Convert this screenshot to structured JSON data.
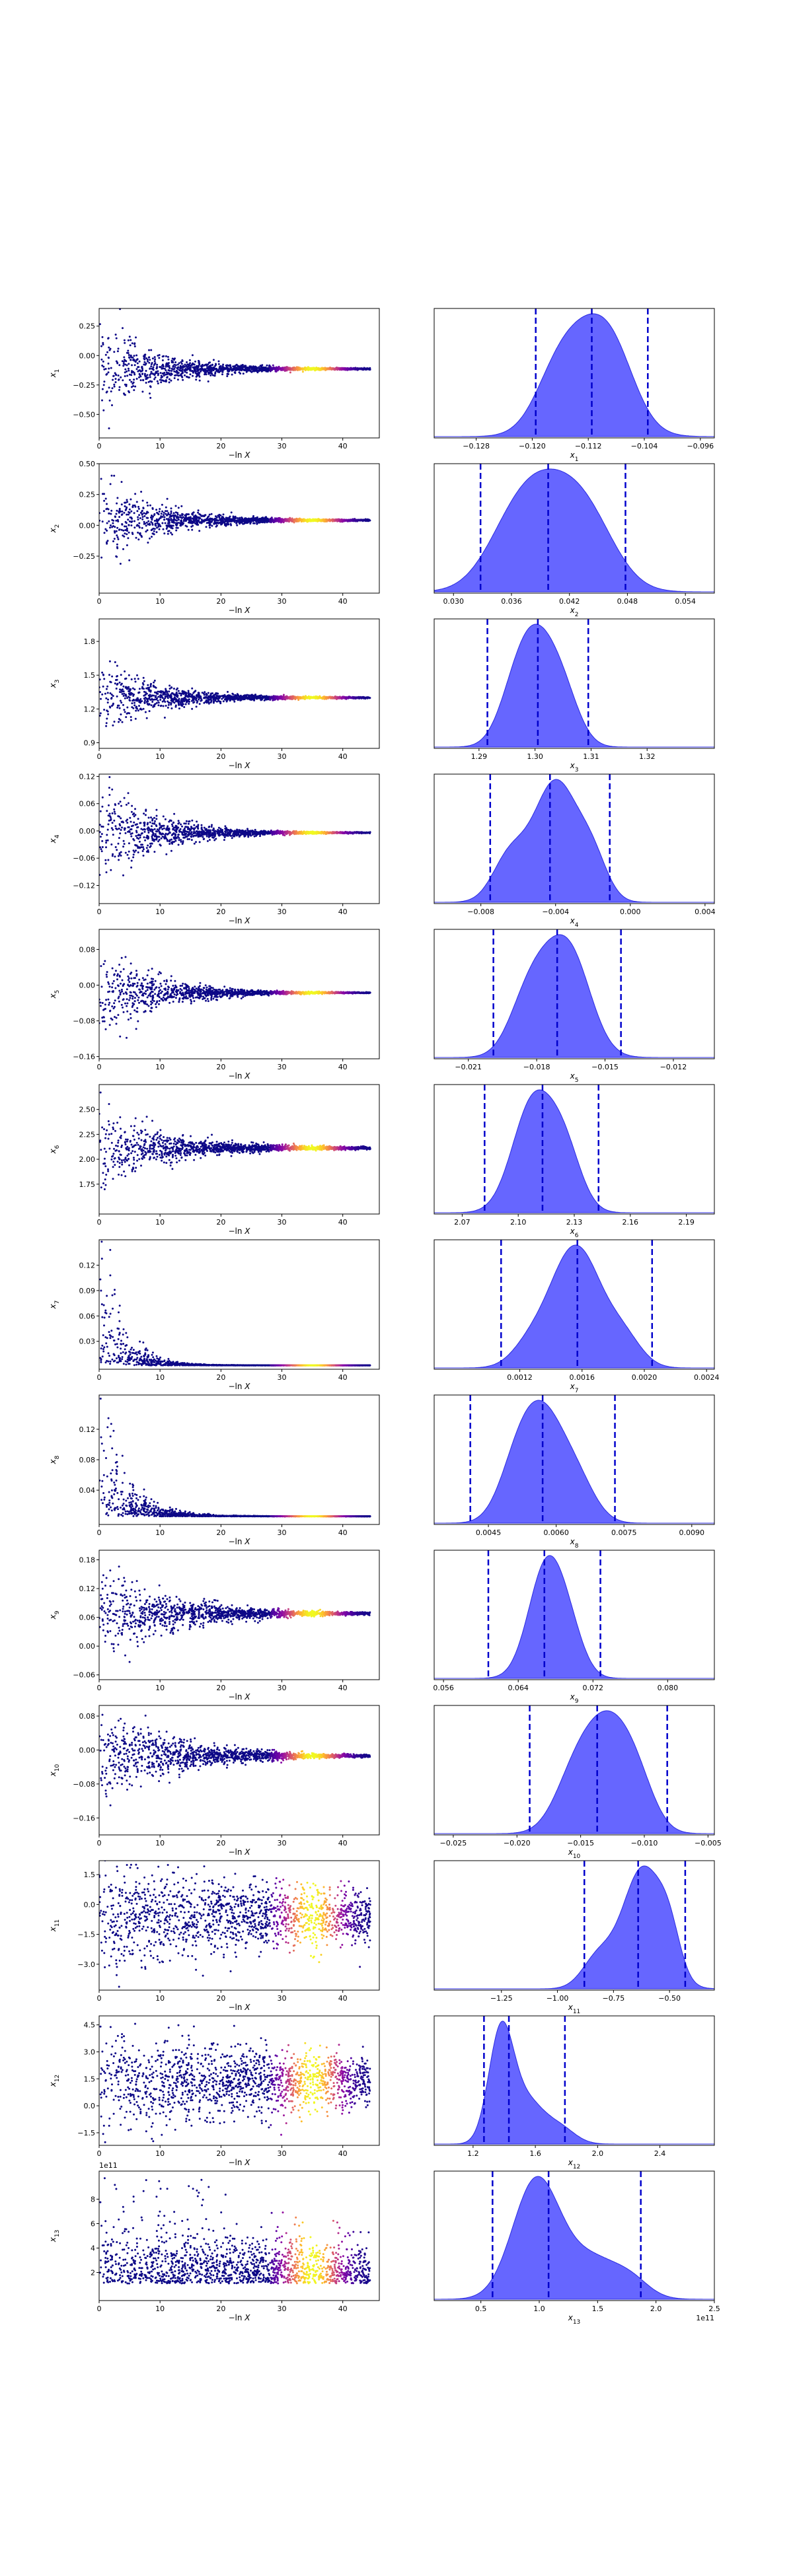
{
  "colors": {
    "scatter_low": "#0d0887",
    "scatter_high": "#f0f921",
    "kde_fill": "#6666ff",
    "kde_edge": "#2a2ae0",
    "quantile_line": "#0000cc",
    "axis": "#000000"
  },
  "chart_data": [
    {
      "type": "scatter",
      "param": "x1",
      "ylabel": "x1",
      "ysym": "x",
      "ysub": "1",
      "xlabel": "−ln X",
      "xlim": [
        0,
        46
      ],
      "ylim": [
        -0.7,
        0.4
      ],
      "xticks": [
        0,
        10,
        20,
        30,
        40
      ],
      "yticks": [
        0.25,
        0.0,
        -0.25,
        -0.5
      ],
      "yticklabels": [
        "0.25",
        "0.00",
        "−0.25",
        "−0.50"
      ],
      "center": -0.113,
      "spread0": 0.22,
      "decay": 0.12,
      "floor": 0.004
    },
    {
      "type": "area",
      "param": "x1",
      "xlabel": "x1",
      "xsym": "x",
      "xsub": "1",
      "xlim": [
        -0.134,
        -0.094
      ],
      "xticks": [
        -0.128,
        -0.12,
        -0.112,
        -0.104,
        -0.096
      ],
      "xticklabels": [
        "−0.128",
        "−0.120",
        "−0.112",
        "−0.104",
        "−0.096"
      ],
      "quantiles": [
        -0.1195,
        -0.1115,
        -0.1035
      ],
      "bumps": [
        [
          -0.112,
          0.0045,
          1.0
        ],
        [
          -0.117,
          0.003,
          0.25
        ],
        [
          -0.108,
          0.003,
          0.3
        ]
      ]
    },
    {
      "type": "scatter",
      "param": "x2",
      "ylabel": "x2",
      "ysym": "x",
      "ysub": "2",
      "xlabel": "−ln X",
      "xlim": [
        0,
        46
      ],
      "ylim": [
        -0.55,
        0.5
      ],
      "xticks": [
        0,
        10,
        20,
        30,
        40
      ],
      "yticks": [
        0.5,
        0.25,
        0.0,
        -0.25
      ],
      "yticklabels": [
        "0.50",
        "0.25",
        "0.00",
        "−0.25"
      ],
      "center": 0.041,
      "spread0": 0.2,
      "decay": 0.12,
      "floor": 0.004
    },
    {
      "type": "area",
      "param": "x2",
      "xlabel": "x2",
      "xsym": "x",
      "xsub": "2",
      "xlim": [
        0.028,
        0.057
      ],
      "xticks": [
        0.03,
        0.036,
        0.042,
        0.048,
        0.054
      ],
      "xticklabels": [
        "0.030",
        "0.036",
        "0.042",
        "0.048",
        "0.054"
      ],
      "quantiles": [
        0.0328,
        0.0398,
        0.0478
      ],
      "bumps": [
        [
          0.0395,
          0.0035,
          0.9
        ],
        [
          0.044,
          0.003,
          0.6
        ],
        [
          0.036,
          0.003,
          0.4
        ]
      ]
    },
    {
      "type": "scatter",
      "param": "x3",
      "ylabel": "x3",
      "ysym": "x",
      "ysub": "3",
      "xlabel": "−ln X",
      "xlim": [
        0,
        46
      ],
      "ylim": [
        0.85,
        2.0
      ],
      "xticks": [
        0,
        10,
        20,
        30,
        40
      ],
      "yticks": [
        1.8,
        1.5,
        1.2,
        0.9
      ],
      "yticklabels": [
        "1.8",
        "1.5",
        "1.2",
        "0.9"
      ],
      "center": 1.3,
      "spread0": 0.18,
      "decay": 0.12,
      "floor": 0.004
    },
    {
      "type": "area",
      "param": "x3",
      "xlabel": "x3",
      "xsym": "x",
      "xsub": "3",
      "xlim": [
        1.282,
        1.332
      ],
      "xticks": [
        1.29,
        1.3,
        1.31,
        1.32
      ],
      "xticklabels": [
        "1.29",
        "1.30",
        "1.31",
        "1.32"
      ],
      "quantiles": [
        1.2915,
        1.3005,
        1.3095
      ],
      "bumps": [
        [
          1.3,
          0.0035,
          1.0
        ],
        [
          1.305,
          0.003,
          0.45
        ],
        [
          1.296,
          0.003,
          0.3
        ]
      ]
    },
    {
      "type": "scatter",
      "param": "x4",
      "ylabel": "x4",
      "ysym": "x",
      "ysub": "4",
      "xlabel": "−ln X",
      "xlim": [
        0,
        46
      ],
      "ylim": [
        -0.16,
        0.125
      ],
      "xticks": [
        0,
        10,
        20,
        30,
        40
      ],
      "yticks": [
        0.12,
        0.06,
        0.0,
        -0.06,
        -0.12
      ],
      "yticklabels": [
        "0.12",
        "0.06",
        "0.00",
        "−0.06",
        "−0.12"
      ],
      "center": -0.004,
      "spread0": 0.06,
      "decay": 0.12,
      "floor": 0.002
    },
    {
      "type": "area",
      "param": "x4",
      "xlabel": "x4",
      "xsym": "x",
      "xsub": "4",
      "xlim": [
        -0.0105,
        0.0045
      ],
      "xticks": [
        -0.008,
        -0.004,
        0.0,
        0.004
      ],
      "xticklabels": [
        "−0.008",
        "−0.004",
        "0.000",
        "0.004"
      ],
      "quantiles": [
        -0.0075,
        -0.0043,
        -0.0011
      ],
      "bumps": [
        [
          -0.004,
          0.0012,
          1.0
        ],
        [
          -0.0065,
          0.0009,
          0.35
        ],
        [
          -0.002,
          0.0008,
          0.3
        ]
      ]
    },
    {
      "type": "scatter",
      "param": "x5",
      "ylabel": "x5",
      "ysym": "x",
      "ysub": "5",
      "xlabel": "−ln X",
      "xlim": [
        0,
        46
      ],
      "ylim": [
        -0.165,
        0.125
      ],
      "xticks": [
        0,
        10,
        20,
        30,
        40
      ],
      "yticks": [
        0.08,
        0.0,
        -0.08,
        -0.16
      ],
      "yticklabels": [
        "0.08",
        "0.00",
        "−0.08",
        "−0.16"
      ],
      "center": -0.017,
      "spread0": 0.055,
      "decay": 0.12,
      "floor": 0.002
    },
    {
      "type": "area",
      "param": "x5",
      "xlabel": "x5",
      "xsym": "x",
      "xsub": "5",
      "xlim": [
        -0.0225,
        -0.0102
      ],
      "xticks": [
        -0.021,
        -0.018,
        -0.015,
        -0.012
      ],
      "xticklabels": [
        "−0.021",
        "−0.018",
        "−0.015",
        "−0.012"
      ],
      "quantiles": [
        -0.0199,
        -0.0171,
        -0.0143
      ],
      "bumps": [
        [
          -0.0171,
          0.0011,
          1.0
        ],
        [
          -0.0185,
          0.0008,
          0.35
        ],
        [
          -0.0162,
          0.0008,
          0.3
        ]
      ]
    },
    {
      "type": "scatter",
      "param": "x6",
      "ylabel": "x6",
      "ysym": "x",
      "ysub": "6",
      "xlabel": "−ln X",
      "xlim": [
        0,
        46
      ],
      "ylim": [
        1.45,
        2.75
      ],
      "xticks": [
        0,
        10,
        20,
        30,
        40
      ],
      "yticks": [
        2.5,
        2.25,
        2.0,
        1.75
      ],
      "yticklabels": [
        "2.50",
        "2.25",
        "2.00",
        "1.75"
      ],
      "center": 2.112,
      "spread0": 0.2,
      "decay": 0.1,
      "floor": 0.006
    },
    {
      "type": "area",
      "param": "x6",
      "xlabel": "x6",
      "xsym": "x",
      "xsub": "6",
      "xlim": [
        2.055,
        2.205
      ],
      "xticks": [
        2.07,
        2.1,
        2.13,
        2.16,
        2.19
      ],
      "xticklabels": [
        "2.07",
        "2.10",
        "2.13",
        "2.16",
        "2.19"
      ],
      "quantiles": [
        2.082,
        2.113,
        2.143
      ],
      "bumps": [
        [
          2.108,
          0.011,
          1.0
        ],
        [
          2.125,
          0.009,
          0.5
        ]
      ]
    },
    {
      "type": "scatter",
      "param": "x7",
      "ylabel": "x7",
      "ysym": "x",
      "ysub": "7",
      "xlabel": "−ln X",
      "xlim": [
        0,
        46
      ],
      "ylim": [
        -0.003,
        0.15
      ],
      "xticks": [
        0,
        10,
        20,
        30,
        40
      ],
      "yticks": [
        0.12,
        0.09,
        0.06,
        0.03
      ],
      "yticklabels": [
        "0.12",
        "0.09",
        "0.06",
        "0.03"
      ],
      "center": 0.0016,
      "spread0": 0.06,
      "decay": 0.3,
      "floor": 0.0002,
      "onesided": true
    },
    {
      "type": "area",
      "param": "x7",
      "xlabel": "x7",
      "xsym": "x",
      "xsub": "7",
      "xlim": [
        0.00065,
        0.00245
      ],
      "xticks": [
        0.0012,
        0.0016,
        0.002,
        0.0024
      ],
      "xticklabels": [
        "0.0012",
        "0.0016",
        "0.0020",
        "0.0024"
      ],
      "quantiles": [
        0.00108,
        0.00157,
        0.00205
      ],
      "bumps": [
        [
          0.00148,
          0.00012,
          0.9
        ],
        [
          0.00163,
          0.00012,
          0.95
        ],
        [
          0.00185,
          0.00012,
          0.45
        ],
        [
          0.00128,
          0.00012,
          0.35
        ]
      ]
    },
    {
      "type": "scatter",
      "param": "x8",
      "ylabel": "x8",
      "ysym": "x",
      "ysub": "8",
      "xlabel": "−ln X",
      "xlim": [
        0,
        46
      ],
      "ylim": [
        -0.005,
        0.165
      ],
      "xticks": [
        0,
        10,
        20,
        30,
        40
      ],
      "yticks": [
        0.12,
        0.08,
        0.04
      ],
      "yticklabels": [
        "0.12",
        "0.08",
        "0.04"
      ],
      "center": 0.0057,
      "spread0": 0.06,
      "decay": 0.25,
      "floor": 0.0005,
      "onesided": true
    },
    {
      "type": "area",
      "param": "x8",
      "xlabel": "x8",
      "xsym": "x",
      "xsub": "8",
      "xlim": [
        0.0033,
        0.0095
      ],
      "xticks": [
        0.0045,
        0.006,
        0.0075,
        0.009
      ],
      "xticklabels": [
        "0.0045",
        "0.0060",
        "0.0075",
        "0.0090"
      ],
      "quantiles": [
        0.0041,
        0.0057,
        0.0073
      ],
      "bumps": [
        [
          0.0057,
          0.0005,
          1.0
        ],
        [
          0.0051,
          0.0004,
          0.35
        ],
        [
          0.0065,
          0.0004,
          0.3
        ]
      ]
    },
    {
      "type": "scatter",
      "param": "x9",
      "ylabel": "x9",
      "ysym": "x",
      "ysub": "9",
      "xlabel": "−ln X",
      "xlim": [
        0,
        46
      ],
      "ylim": [
        -0.07,
        0.2
      ],
      "xticks": [
        0,
        10,
        20,
        30,
        40
      ],
      "yticks": [
        0.18,
        0.12,
        0.06,
        0.0,
        -0.06
      ],
      "yticklabels": [
        "0.18",
        "0.12",
        "0.06",
        "0.00",
        "−0.06"
      ],
      "center": 0.068,
      "spread0": 0.05,
      "decay": 0.09,
      "floor": 0.003
    },
    {
      "type": "area",
      "param": "x9",
      "xlabel": "x9",
      "xsym": "x",
      "xsub": "9",
      "xlim": [
        0.055,
        0.085
      ],
      "xticks": [
        0.056,
        0.064,
        0.072,
        0.08
      ],
      "xticklabels": [
        "0.056",
        "0.064",
        "0.072",
        "0.080"
      ],
      "quantiles": [
        0.0608,
        0.0668,
        0.0728
      ],
      "bumps": [
        [
          0.067,
          0.0019,
          1.0
        ],
        [
          0.0695,
          0.0016,
          0.3
        ]
      ]
    },
    {
      "type": "scatter",
      "param": "x10",
      "ylabel": "x10",
      "ysym": "x",
      "ysub": "10",
      "xlabel": "−ln X",
      "xlim": [
        0,
        46
      ],
      "ylim": [
        -0.2,
        0.105
      ],
      "xticks": [
        0,
        10,
        20,
        30,
        40
      ],
      "yticks": [
        0.08,
        0.0,
        -0.08,
        -0.16
      ],
      "yticklabels": [
        "0.08",
        "0.00",
        "−0.08",
        "−0.16"
      ],
      "center": -0.014,
      "spread0": 0.06,
      "decay": 0.09,
      "floor": 0.003
    },
    {
      "type": "area",
      "param": "x10",
      "xlabel": "x10",
      "xsym": "x",
      "xsub": "10",
      "xlim": [
        -0.0265,
        -0.0045
      ],
      "xticks": [
        -0.025,
        -0.02,
        -0.015,
        -0.01,
        -0.005
      ],
      "xticklabels": [
        "−0.025",
        "−0.020",
        "−0.015",
        "−0.010",
        "−0.005"
      ],
      "quantiles": [
        -0.019,
        -0.0137,
        -0.0082
      ],
      "bumps": [
        [
          -0.0128,
          0.0018,
          1.0
        ],
        [
          -0.0155,
          0.0016,
          0.5
        ],
        [
          -0.0105,
          0.0014,
          0.35
        ]
      ]
    },
    {
      "type": "scatter",
      "param": "x11",
      "ylabel": "x11",
      "ysym": "x",
      "ysub": "11",
      "xlabel": "−ln X",
      "xlim": [
        0,
        46
      ],
      "ylim": [
        -4.3,
        2.2
      ],
      "xticks": [
        0,
        10,
        20,
        30,
        40
      ],
      "yticks": [
        1.5,
        0.0,
        -1.5,
        -3.0
      ],
      "yticklabels": [
        "1.5",
        "0.0",
        "−1.5",
        "−3.0"
      ],
      "center": -0.6,
      "spread0": 1.1,
      "decay": 0.03,
      "floor": 0.12
    },
    {
      "type": "area",
      "param": "x11",
      "xlabel": "x11",
      "xsym": "x",
      "xsub": "11",
      "xlim": [
        -1.55,
        -0.3
      ],
      "xticks": [
        -1.25,
        -1.0,
        -0.75,
        -0.5
      ],
      "xticklabels": [
        "−1.25",
        "−1.00",
        "−0.75",
        "−0.50"
      ],
      "quantiles": [
        -0.88,
        -0.64,
        -0.43
      ],
      "bumps": [
        [
          -0.62,
          0.09,
          1.0
        ],
        [
          -0.82,
          0.07,
          0.25
        ],
        [
          -0.5,
          0.05,
          0.3
        ]
      ]
    },
    {
      "type": "scatter",
      "param": "x12",
      "ylabel": "x12",
      "ysym": "x",
      "ysub": "12",
      "xlabel": "−ln X",
      "xlim": [
        0,
        46
      ],
      "ylim": [
        -2.2,
        5.0
      ],
      "xticks": [
        0,
        10,
        20,
        30,
        40
      ],
      "yticks": [
        4.5,
        3.0,
        1.5,
        0.0,
        -1.5
      ],
      "yticklabels": [
        "4.5",
        "3.0",
        "1.5",
        "0.0",
        "−1.5"
      ],
      "center": 1.4,
      "spread0": 1.1,
      "decay": 0.03,
      "floor": 0.12
    },
    {
      "type": "area",
      "param": "x12",
      "xlabel": "x12",
      "xsym": "x",
      "xsub": "12",
      "xlim": [
        0.95,
        2.75
      ],
      "xticks": [
        1.2,
        1.6,
        2.0,
        2.4
      ],
      "xticklabels": [
        "1.2",
        "1.6",
        "2.0",
        "2.4"
      ],
      "quantiles": [
        1.27,
        1.43,
        1.79
      ],
      "bumps": [
        [
          1.38,
          0.08,
          1.0
        ],
        [
          1.55,
          0.1,
          0.35
        ],
        [
          1.75,
          0.1,
          0.15
        ]
      ]
    },
    {
      "type": "scatter",
      "param": "x13",
      "ylabel": "x13",
      "ysym": "x",
      "ysub": "13",
      "xlabel": "−ln X",
      "xlim": [
        0,
        46
      ],
      "ylim": [
        -0.3,
        10.3
      ],
      "xticks": [
        0,
        10,
        20,
        30,
        40
      ],
      "yticks": [
        8,
        6,
        4,
        2
      ],
      "yticklabels": [
        "8",
        "6",
        "4",
        "2"
      ],
      "offset_label": "1e11",
      "center": 1.1,
      "spread0": 0.4,
      "decay": 0.02,
      "floor": 0.2,
      "onesided": true,
      "outliers": true
    },
    {
      "type": "area",
      "param": "x13",
      "xlabel": "x13",
      "xsym": "x",
      "xsub": "13",
      "xlim": [
        0.1,
        2.5
      ],
      "xticks": [
        0.5,
        1.0,
        1.5,
        2.0,
        2.5
      ],
      "xticklabels": [
        "0.5",
        "1.0",
        "1.5",
        "2.0",
        "2.5"
      ],
      "offset_label": "1e11",
      "quantiles": [
        0.6,
        1.08,
        1.87
      ],
      "bumps": [
        [
          0.97,
          0.2,
          1.0
        ],
        [
          1.45,
          0.25,
          0.35
        ],
        [
          1.8,
          0.15,
          0.1
        ]
      ]
    }
  ]
}
